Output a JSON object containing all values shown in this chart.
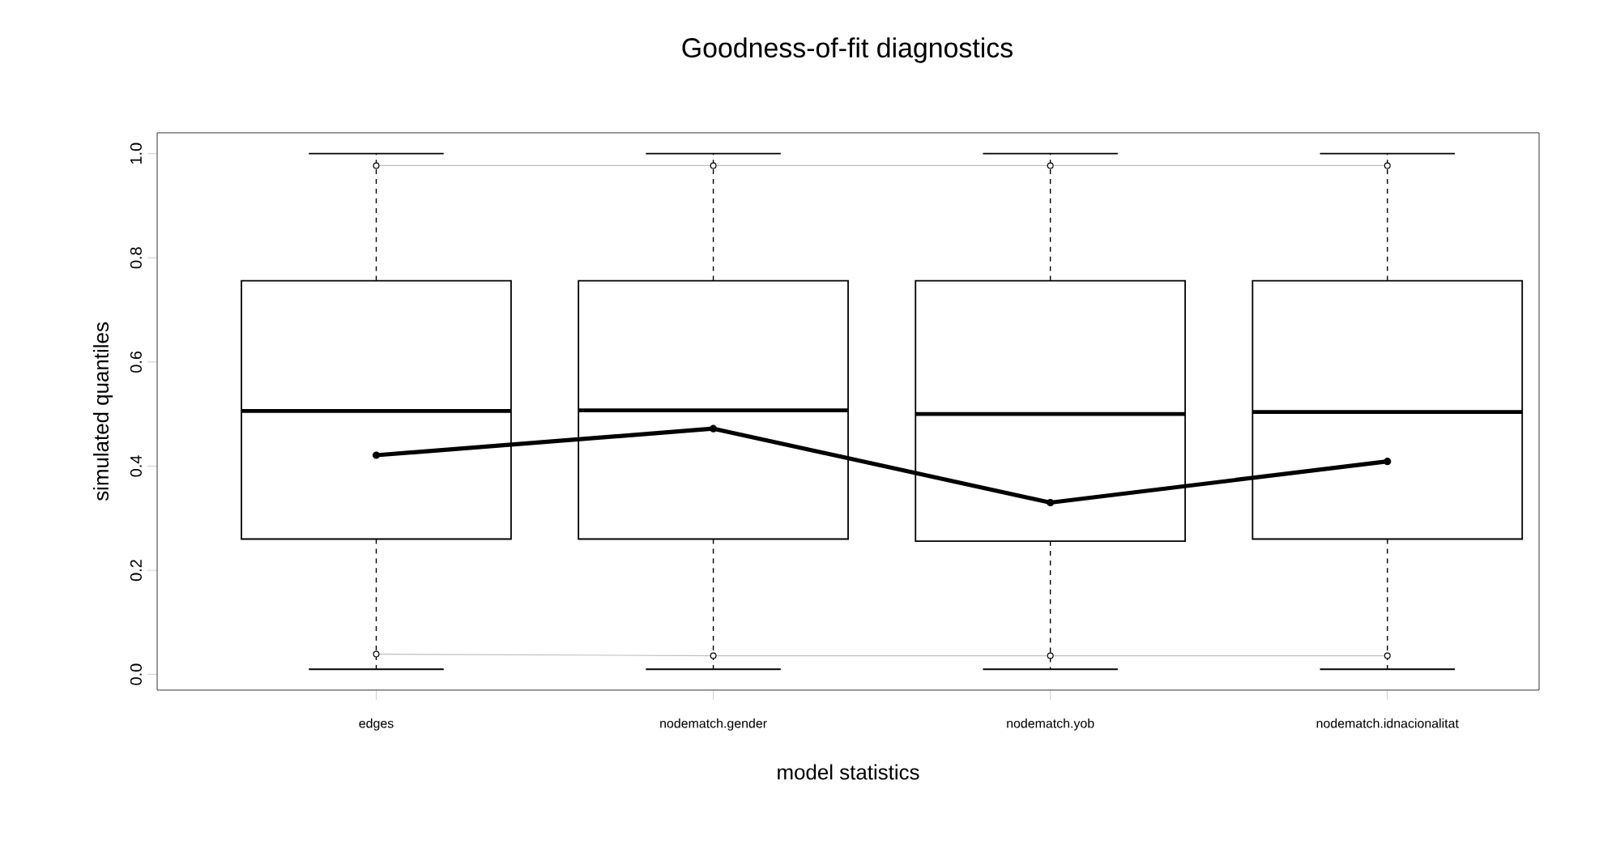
{
  "chart_data": {
    "type": "box",
    "title": "Goodness-of-fit diagnostics",
    "xlabel": "model statistics",
    "ylabel": "simulated quantiles",
    "categories": [
      "edges",
      "nodematch.gender",
      "nodematch.yob",
      "nodematch.idnacionalitat"
    ],
    "boxes": [
      {
        "low": 0.01,
        "q1": 0.26,
        "median": 0.506,
        "q3": 0.756,
        "high": 1.0
      },
      {
        "low": 0.01,
        "q1": 0.26,
        "median": 0.507,
        "q3": 0.756,
        "high": 1.0
      },
      {
        "low": 0.01,
        "q1": 0.256,
        "median": 0.5,
        "q3": 0.756,
        "high": 1.0
      },
      {
        "low": 0.01,
        "q1": 0.26,
        "median": 0.504,
        "q3": 0.756,
        "high": 1.0
      }
    ],
    "series": [
      {
        "type": "line",
        "color": "#000000",
        "marker": "circle",
        "values": [
          0.421,
          0.472,
          0.33,
          0.409
        ]
      },
      {
        "type": "line",
        "color": "#bebebe",
        "marker": "circle",
        "values": [
          0.977,
          0.977,
          0.977,
          0.977
        ]
      },
      {
        "type": "line",
        "color": "#bebebe",
        "marker": "circle",
        "values": [
          0.039,
          0.036,
          0.036,
          0.036
        ]
      }
    ],
    "ylim": [
      -0.03,
      1.04
    ],
    "yticks": [
      {
        "value": 0,
        "label": "0.0"
      },
      0.2,
      0.4,
      0.6,
      0.8,
      {
        "value": 1,
        "label": "1.0"
      }
    ]
  }
}
